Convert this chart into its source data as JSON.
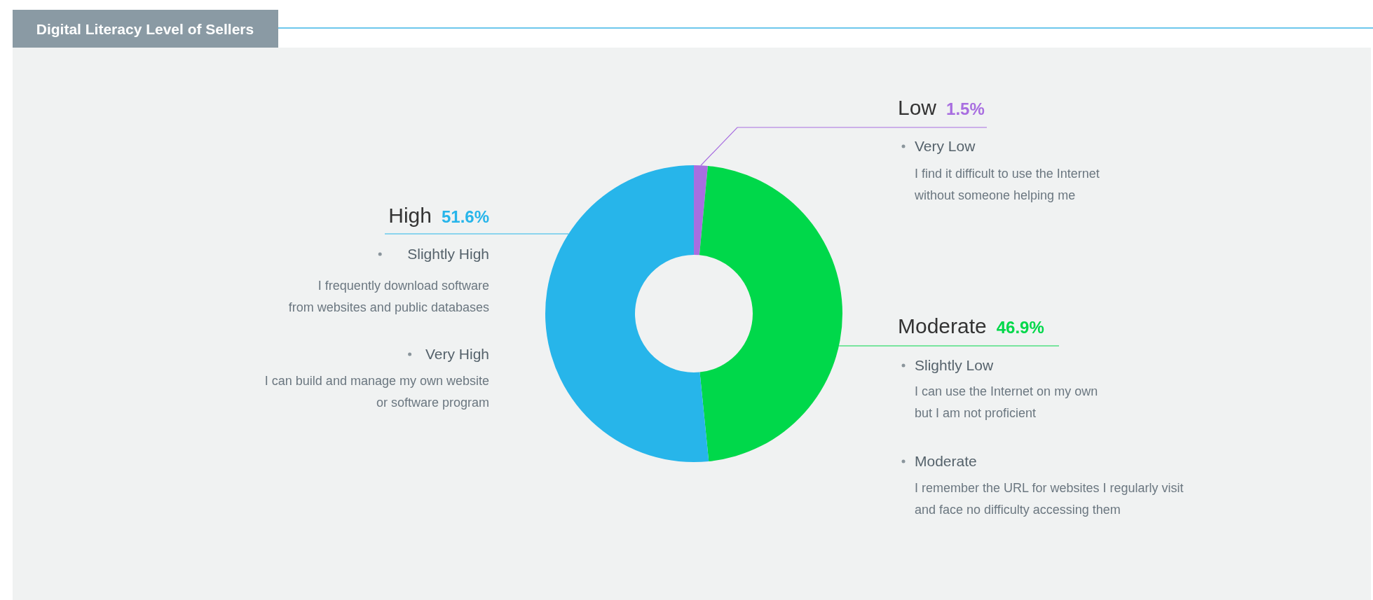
{
  "chart_data": {
    "type": "donut",
    "title": "Digital Literacy Level of Sellers",
    "categories": [
      "Low",
      "Moderate",
      "High"
    ],
    "values": [
      1.5,
      46.9,
      51.6
    ],
    "colors": [
      "#a86ee0",
      "#00d84a",
      "#27b5ea"
    ],
    "value_labels": [
      "1.5%",
      "46.9%",
      "51.6%"
    ],
    "annotations": [
      "Very Low",
      "I find it difficult to use the Internet\nwithout someone helping me",
      "Slightly Low",
      "I can use the Internet on my own\nbut I am not proficient",
      "Moderate",
      "I remember the URL for websites I regularly visit\nand face no difficulty accessing them",
      "Slightly High",
      "I frequently download software\nfrom websites and public databases",
      "Very High",
      "I can build and manage my own website\nor software program"
    ]
  }
}
